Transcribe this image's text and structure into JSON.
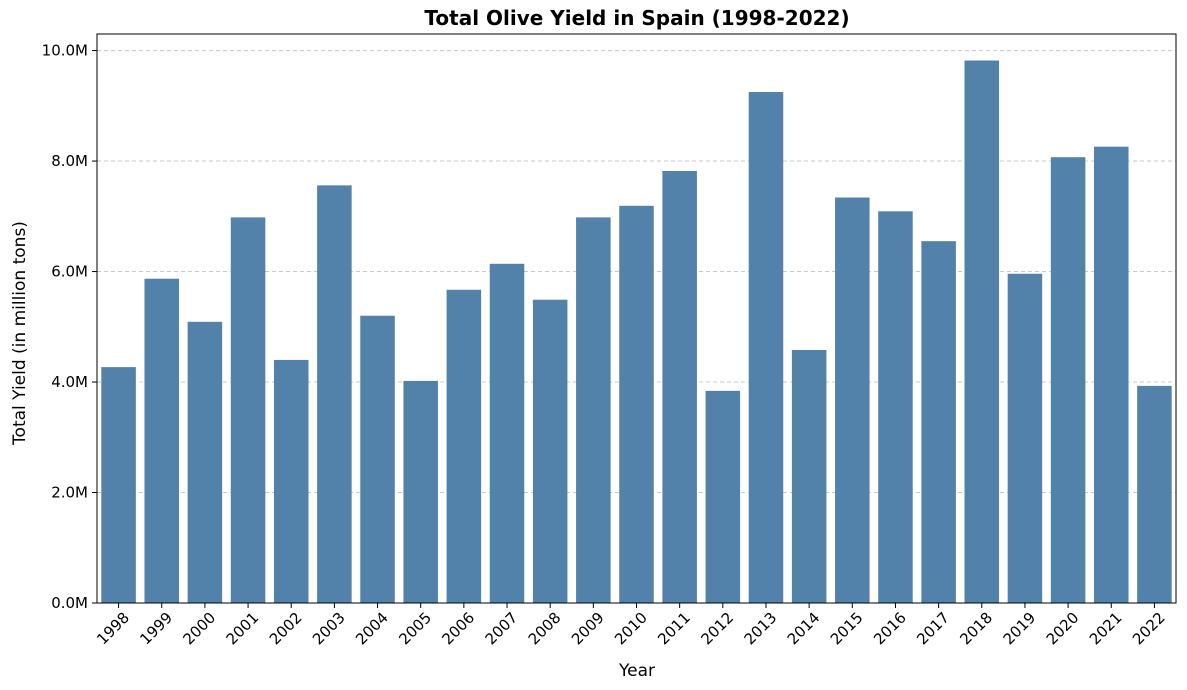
{
  "chart_data": {
    "type": "bar",
    "title": "Total Olive Yield in Spain (1998-2022)",
    "xlabel": "Year",
    "ylabel": "Total Yield (in million tons)",
    "categories": [
      "1998",
      "1999",
      "2000",
      "2001",
      "2002",
      "2003",
      "2004",
      "2005",
      "2006",
      "2007",
      "2008",
      "2009",
      "2010",
      "2011",
      "2012",
      "2013",
      "2014",
      "2015",
      "2016",
      "2017",
      "2018",
      "2019",
      "2020",
      "2021",
      "2022"
    ],
    "values": [
      4.27,
      5.87,
      5.09,
      6.98,
      4.4,
      7.56,
      5.2,
      4.02,
      5.67,
      6.14,
      5.49,
      6.98,
      7.19,
      7.82,
      3.84,
      9.25,
      4.58,
      7.34,
      7.09,
      6.55,
      9.82,
      5.96,
      8.07,
      8.26,
      3.93
    ],
    "value_unit": "million tons",
    "ylim": [
      0,
      10.3
    ],
    "yticks": [
      0,
      2,
      4,
      6,
      8,
      10
    ],
    "ytick_labels": [
      "0.0M",
      "2.0M",
      "4.0M",
      "6.0M",
      "8.0M",
      "10.0M"
    ],
    "grid": "y-axis dashed",
    "bar_color": "#5282a9",
    "grid_color": "#c8c8c8"
  }
}
